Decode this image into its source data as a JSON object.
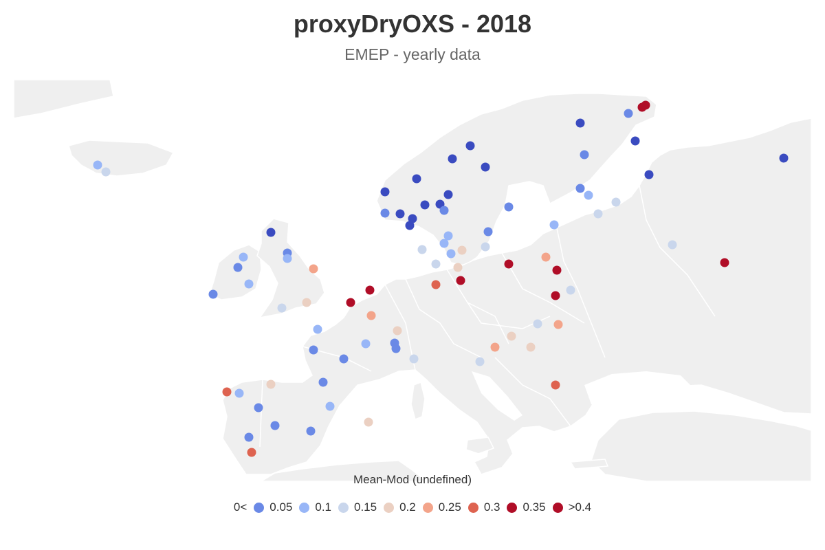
{
  "title": "proxyDryOXS - 2018",
  "subtitle": "EMEP - yearly data",
  "legend": {
    "title": "Mean-Mod (undefined)",
    "first_label": "0<",
    "items": [
      {
        "label": "0.05",
        "color": "#6a89e6"
      },
      {
        "label": "0.1",
        "color": "#98b6f7"
      },
      {
        "label": "0.15",
        "color": "#c9d6ec"
      },
      {
        "label": "0.2",
        "color": "#ebd0c2"
      },
      {
        "label": "0.25",
        "color": "#f3a48a"
      },
      {
        "label": "0.3",
        "color": "#de6350"
      },
      {
        "label": "0.35",
        "color": "#b00d27"
      },
      {
        "label": ">0.4",
        "color": "#b00d27"
      }
    ]
  },
  "colors": {
    "land": "#efefef",
    "border": "#ffffff",
    "bin_0": "#3a4bc0",
    "bin_1": "#6a89e6",
    "bin_2": "#98b6f7",
    "bin_3": "#c9d6ec",
    "bin_4": "#ebd0c2",
    "bin_5": "#f3a48a",
    "bin_6": "#de6350",
    "bin_7": "#b00d27"
  }
}
